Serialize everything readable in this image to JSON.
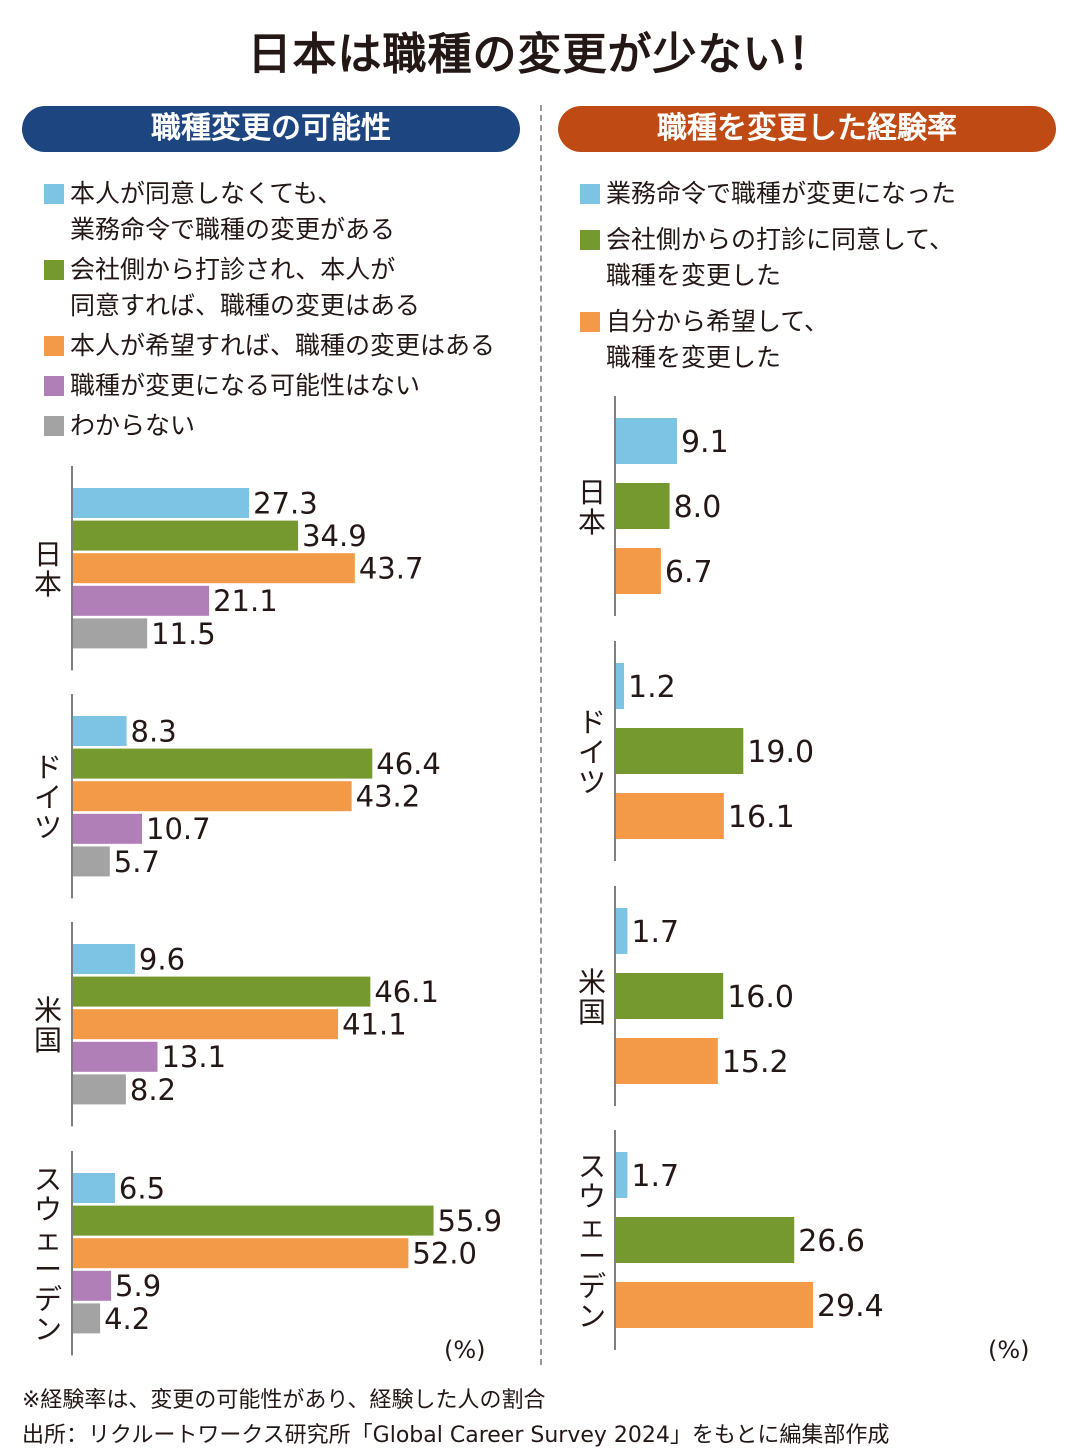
{
  "title": "日本は職種の変更が少ない！",
  "colors": {
    "blue": "#7dc3e3",
    "green": "#76992f",
    "orange": "#f29a48",
    "purple": "#b07fb8",
    "gray": "#a3a3a3",
    "left_header": "#1d4580",
    "right_header": "#bf4a14"
  },
  "footnote": "※経験率は、変更の可能性があり、経験した人の割合",
  "source": "出所：リクルートワークス研究所「Global Career Survey 2024」をもとに編集部作成",
  "chart_data": [
    {
      "type": "bar",
      "title": "職種変更の可能性",
      "unit": "(%)",
      "categories": [
        "日本",
        "ドイツ",
        "米国",
        "スウェーデン"
      ],
      "series": [
        {
          "name": "本人が同意しなくても、\n業務命令で職種の変更がある",
          "color": "#7dc3e3",
          "values": [
            27.3,
            8.3,
            9.6,
            6.5
          ]
        },
        {
          "name": "会社側から打診され、本人が\n同意すれば、職種の変更はある",
          "color": "#76992f",
          "values": [
            34.9,
            46.4,
            46.1,
            55.9
          ]
        },
        {
          "name": "本人が希望すれば、職種の変更はある",
          "color": "#f29a48",
          "values": [
            43.7,
            43.2,
            41.1,
            52.0
          ]
        },
        {
          "name": "職種が変更になる可能性はない",
          "color": "#b07fb8",
          "values": [
            21.1,
            10.7,
            13.1,
            5.9
          ]
        },
        {
          "name": "わからない",
          "color": "#a3a3a3",
          "values": [
            11.5,
            5.7,
            8.2,
            4.2
          ]
        }
      ],
      "xlim": [
        0,
        60
      ]
    },
    {
      "type": "bar",
      "title": "職種を変更した経験率",
      "unit": "(%)",
      "categories": [
        "日本",
        "ドイツ",
        "米国",
        "スウェーデン"
      ],
      "series": [
        {
          "name": "業務命令で職種が変更になった",
          "color": "#7dc3e3",
          "values": [
            9.1,
            1.2,
            1.7,
            1.7
          ]
        },
        {
          "name": "会社側からの打診に同意して、\n職種を変更した",
          "color": "#76992f",
          "values": [
            8.0,
            19.0,
            16.0,
            26.6
          ]
        },
        {
          "name": "自分から希望して、\n職種を変更した",
          "color": "#f29a48",
          "values": [
            6.7,
            16.1,
            15.2,
            29.4
          ]
        }
      ],
      "xlim": [
        0,
        35
      ]
    }
  ]
}
